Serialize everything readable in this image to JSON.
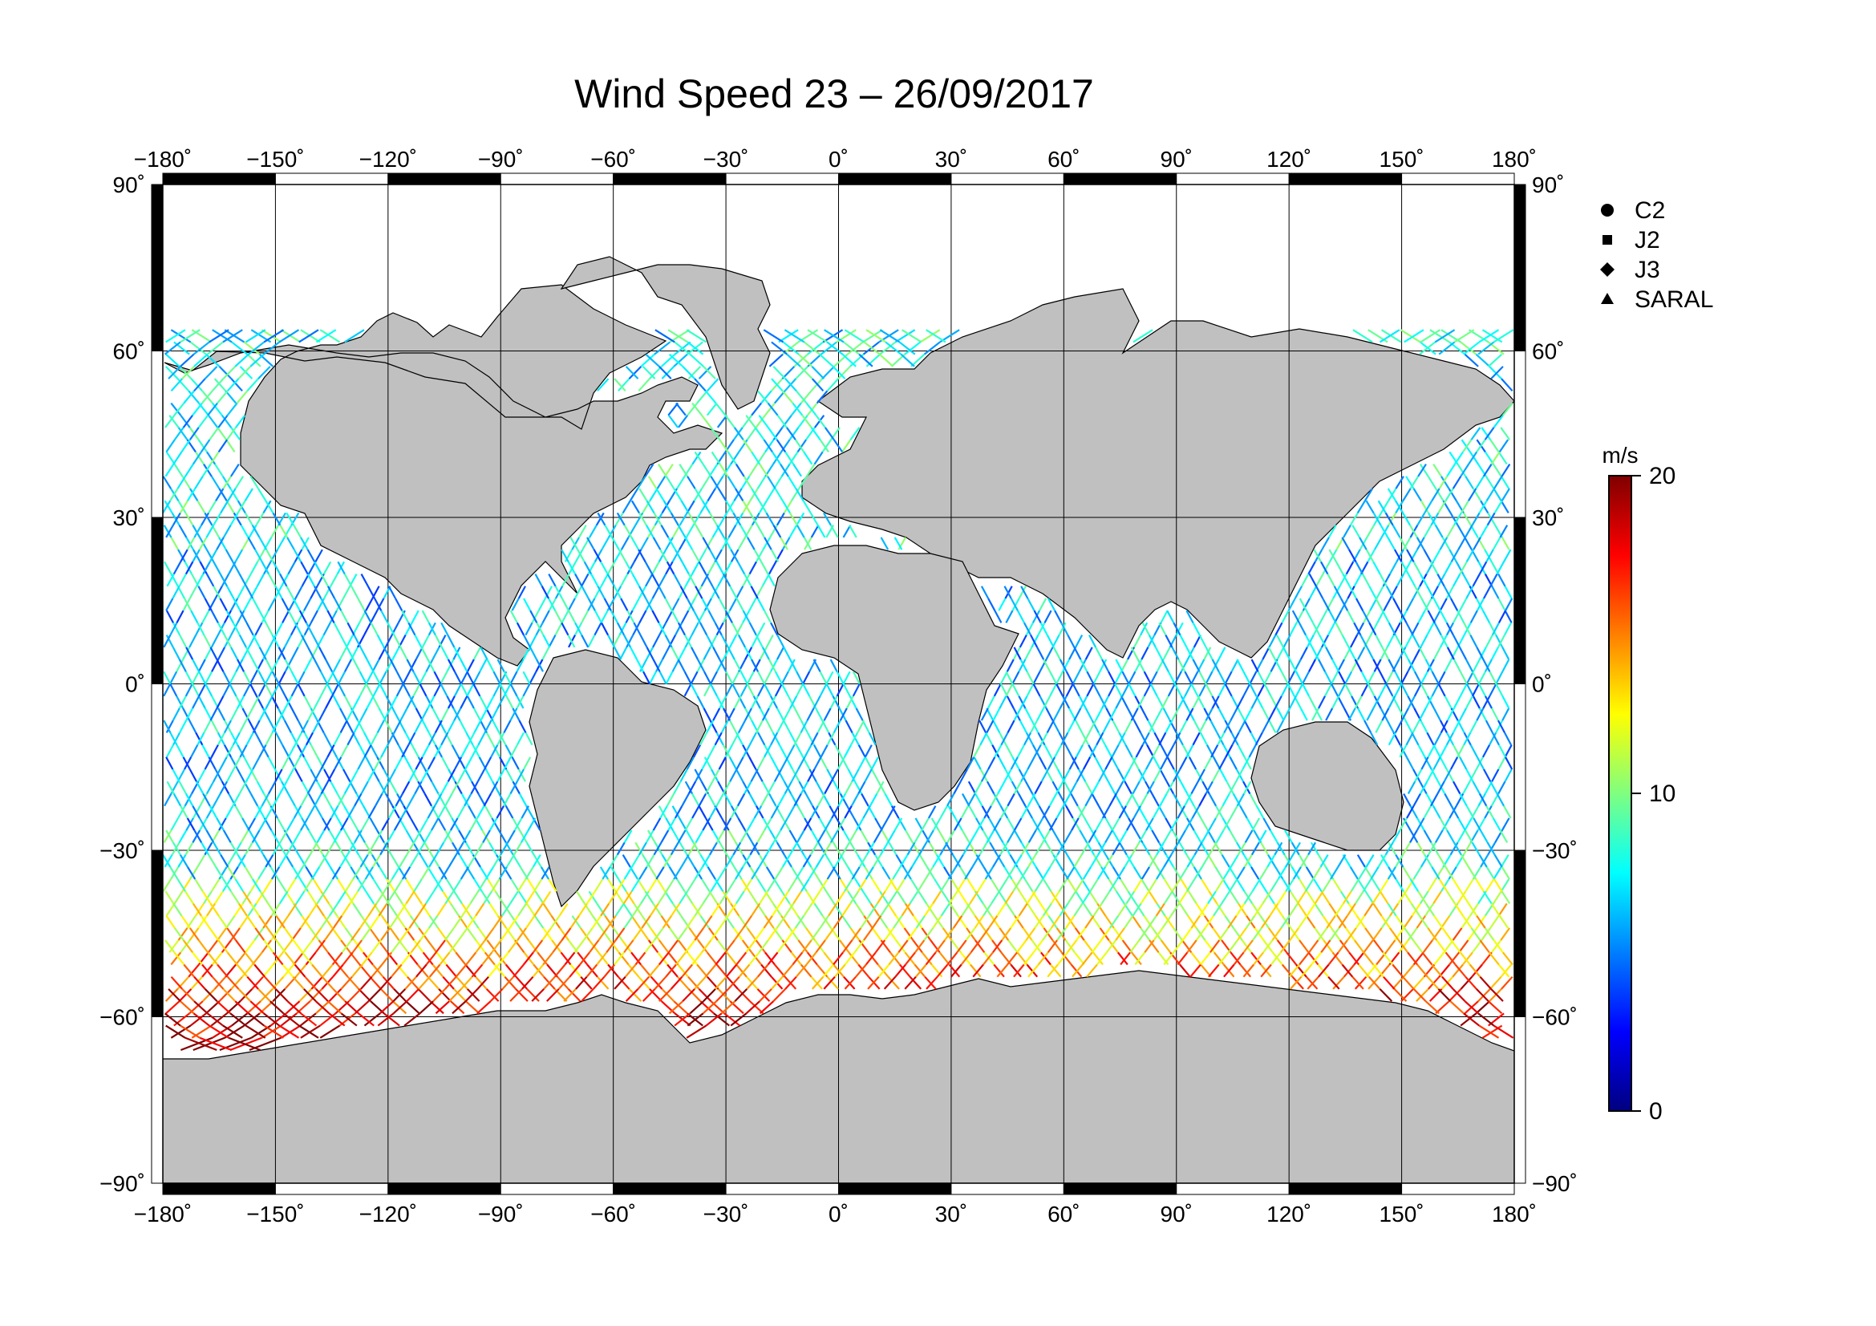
{
  "title": "Wind Speed 23 – 26/09/2017",
  "map": {
    "lon_ticks": [
      -180,
      -150,
      -120,
      -90,
      -60,
      -30,
      0,
      30,
      60,
      90,
      120,
      150,
      180
    ],
    "lat_ticks": [
      90,
      60,
      30,
      0,
      -30,
      -60,
      -90
    ],
    "lon_tick_labels": [
      "−180˚",
      "−150˚",
      "−120˚",
      "−90˚",
      "−60˚",
      "−30˚",
      "0˚",
      "30˚",
      "60˚",
      "90˚",
      "120˚",
      "150˚",
      "180˚"
    ],
    "lat_tick_labels": [
      "90˚",
      "60˚",
      "30˚",
      "0˚",
      "−30˚",
      "−60˚",
      "−90˚"
    ],
    "land_color": "#c0c0c0",
    "ocean_color": "#ffffff"
  },
  "legend": {
    "items": [
      {
        "label": "C2",
        "marker": "circle"
      },
      {
        "label": "J2",
        "marker": "square"
      },
      {
        "label": "J3",
        "marker": "diamond"
      },
      {
        "label": "SARAL",
        "marker": "triangle"
      }
    ]
  },
  "colorbar": {
    "unit": "m/s",
    "min": 0,
    "max": 20,
    "tick_values": [
      20,
      10,
      0
    ],
    "tick_labels": [
      "20",
      "10",
      "0"
    ],
    "colors": [
      "#00007f",
      "#0000ff",
      "#007fff",
      "#00ffff",
      "#7fff7f",
      "#ffff00",
      "#ff7f00",
      "#ff0000",
      "#7f0000"
    ]
  }
}
